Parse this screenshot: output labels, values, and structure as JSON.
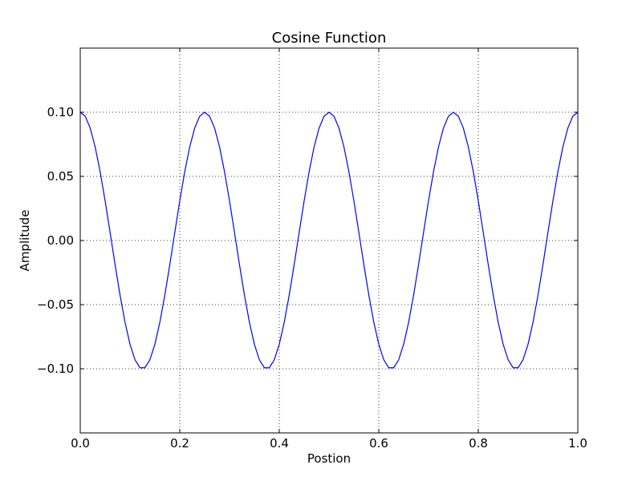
{
  "chart_data": {
    "type": "line",
    "title": "Cosine Function",
    "xlabel": "Postion",
    "ylabel": "Amplitude",
    "xlim": [
      0.0,
      1.0
    ],
    "ylim": [
      -0.15,
      0.15
    ],
    "xticks": [
      0.0,
      0.2,
      0.4,
      0.6,
      0.8,
      1.0
    ],
    "xtick_labels": [
      "0.0",
      "0.2",
      "0.4",
      "0.6",
      "0.8",
      "1.0"
    ],
    "yticks": [
      -0.1,
      -0.05,
      0.0,
      0.05,
      0.1
    ],
    "ytick_labels": [
      "−0.10",
      "−0.05",
      "0.00",
      "0.05",
      "0.10"
    ],
    "grid": true,
    "series": [
      {
        "color": "#0000ff",
        "function": "0.1*cos(8*pi*x)",
        "amplitude": 0.1,
        "frequency": 4,
        "x_start": 0.0,
        "x_end": 1.0
      }
    ]
  }
}
